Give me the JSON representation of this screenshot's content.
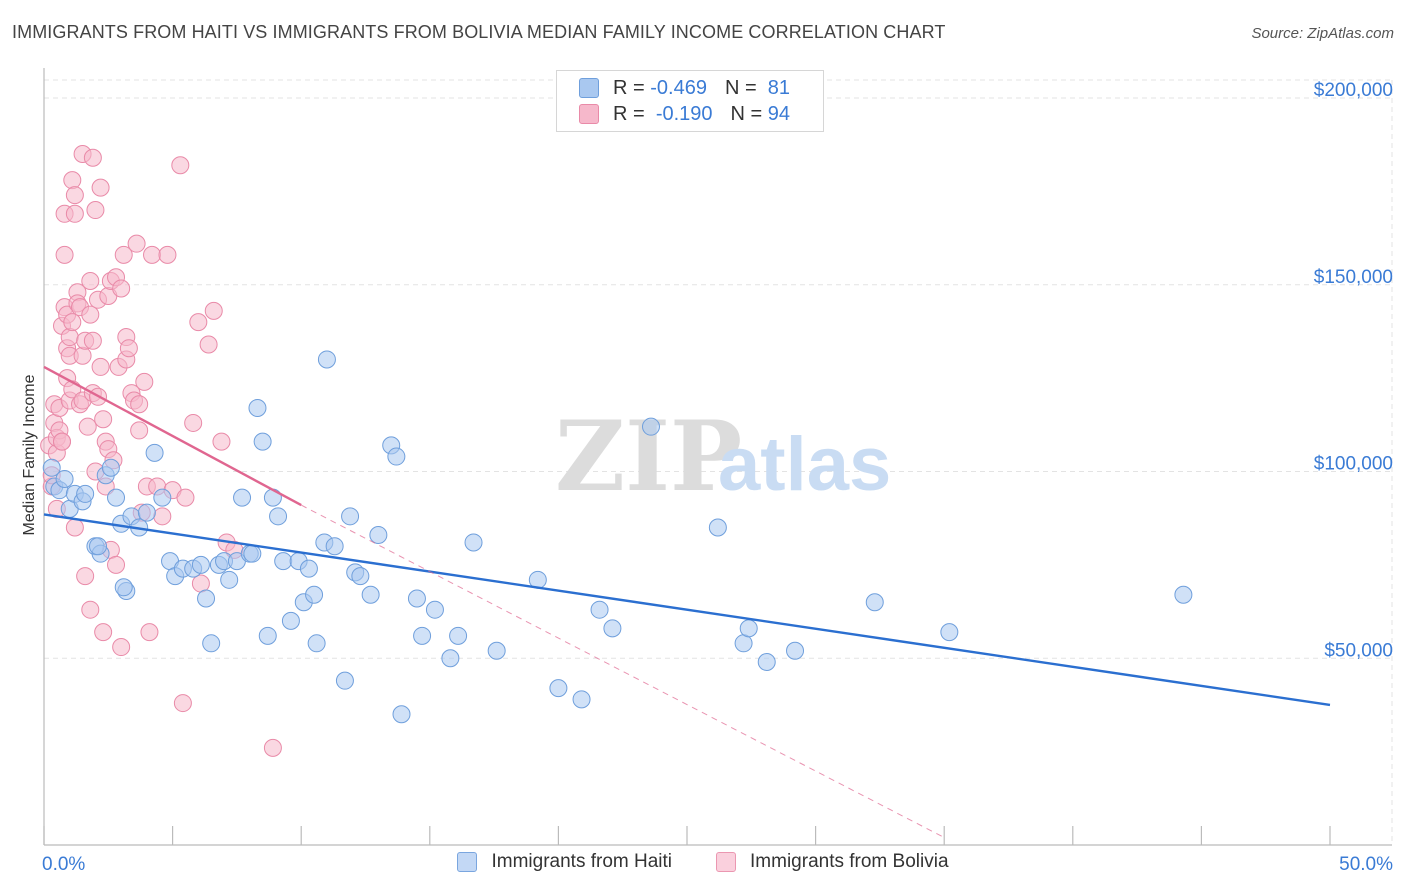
{
  "header": {
    "title": "IMMIGRANTS FROM HAITI VS IMMIGRANTS FROM BOLIVIA MEDIAN FAMILY INCOME CORRELATION CHART",
    "source": "Source: ZipAtlas.com"
  },
  "watermark": {
    "zip": "ZIP",
    "atlas": "atlas"
  },
  "legend": {
    "rows": [
      {
        "r_label": "R =",
        "r_value": "-0.469",
        "n_label": "N =",
        "n_value": "81"
      },
      {
        "r_label": "R =",
        "r_value": "-0.190",
        "n_label": "N =",
        "n_value": "94"
      }
    ]
  },
  "colors": {
    "haiti_fill": "#a9c8f0",
    "haiti_stroke": "#6f9fdc",
    "haiti_line": "#2b6fd0",
    "bolivia_fill": "#f6b8cb",
    "bolivia_stroke": "#e98aa8",
    "bolivia_line": "#e06690",
    "accent_text": "#3a7bd5",
    "grid": "#e3e3e3"
  },
  "chart_data": {
    "type": "scatter",
    "title": "IMMIGRANTS FROM HAITI VS IMMIGRANTS FROM BOLIVIA MEDIAN FAMILY INCOME CORRELATION CHART",
    "xlabel": "",
    "ylabel": "Median Family Income",
    "xlim": [
      0,
      50
    ],
    "ylim": [
      0,
      210000
    ],
    "x_tick_labels": [
      "0.0%",
      "50.0%"
    ],
    "y_ticks": [
      50000,
      100000,
      150000,
      200000
    ],
    "y_tick_labels": [
      "$50,000",
      "$100,000",
      "$150,000",
      "$200,000"
    ],
    "legend_position": "top-center",
    "series": [
      {
        "name": "Immigrants from Haiti",
        "r": -0.469,
        "n": 81,
        "trend": {
          "x": [
            0,
            50
          ],
          "y": [
            88500,
            37500
          ]
        },
        "points": [
          [
            0.3,
            101000
          ],
          [
            0.4,
            96000
          ],
          [
            0.6,
            95000
          ],
          [
            0.8,
            98000
          ],
          [
            1.0,
            90000
          ],
          [
            1.2,
            94000
          ],
          [
            1.5,
            92000
          ],
          [
            1.6,
            94000
          ],
          [
            2.0,
            80000
          ],
          [
            2.2,
            78000
          ],
          [
            2.4,
            99000
          ],
          [
            2.6,
            101000
          ],
          [
            2.8,
            93000
          ],
          [
            3.0,
            86000
          ],
          [
            3.2,
            68000
          ],
          [
            3.4,
            88000
          ],
          [
            3.7,
            85000
          ],
          [
            4.0,
            89000
          ],
          [
            4.3,
            105000
          ],
          [
            4.6,
            93000
          ],
          [
            4.9,
            76000
          ],
          [
            5.1,
            72000
          ],
          [
            5.4,
            74000
          ],
          [
            5.8,
            74000
          ],
          [
            6.1,
            75000
          ],
          [
            6.3,
            66000
          ],
          [
            6.5,
            54000
          ],
          [
            6.8,
            75000
          ],
          [
            7.0,
            76000
          ],
          [
            7.2,
            71000
          ],
          [
            7.5,
            76000
          ],
          [
            7.7,
            93000
          ],
          [
            8.0,
            78000
          ],
          [
            8.1,
            78000
          ],
          [
            8.3,
            117000
          ],
          [
            8.5,
            108000
          ],
          [
            8.7,
            56000
          ],
          [
            8.9,
            93000
          ],
          [
            9.1,
            88000
          ],
          [
            9.3,
            76000
          ],
          [
            9.6,
            60000
          ],
          [
            9.9,
            76000
          ],
          [
            10.1,
            65000
          ],
          [
            10.3,
            74000
          ],
          [
            10.5,
            67000
          ],
          [
            10.6,
            54000
          ],
          [
            10.9,
            81000
          ],
          [
            11.0,
            130000
          ],
          [
            11.3,
            80000
          ],
          [
            11.7,
            44000
          ],
          [
            11.9,
            88000
          ],
          [
            12.1,
            73000
          ],
          [
            12.3,
            72000
          ],
          [
            12.7,
            67000
          ],
          [
            13.0,
            83000
          ],
          [
            13.5,
            107000
          ],
          [
            13.7,
            104000
          ],
          [
            13.9,
            35000
          ],
          [
            14.5,
            66000
          ],
          [
            14.7,
            56000
          ],
          [
            15.2,
            63000
          ],
          [
            15.8,
            50000
          ],
          [
            16.1,
            56000
          ],
          [
            16.7,
            81000
          ],
          [
            17.6,
            52000
          ],
          [
            19.2,
            71000
          ],
          [
            20.0,
            42000
          ],
          [
            20.9,
            39000
          ],
          [
            21.6,
            63000
          ],
          [
            22.1,
            58000
          ],
          [
            23.6,
            112000
          ],
          [
            26.2,
            85000
          ],
          [
            27.2,
            54000
          ],
          [
            27.4,
            58000
          ],
          [
            28.1,
            49000
          ],
          [
            29.2,
            52000
          ],
          [
            32.3,
            65000
          ],
          [
            35.2,
            57000
          ],
          [
            44.3,
            67000
          ],
          [
            3.1,
            69000
          ],
          [
            2.1,
            80000
          ]
        ]
      },
      {
        "name": "Immigrants from Bolivia",
        "r": -0.19,
        "n": 94,
        "trend": {
          "x": [
            0,
            10
          ],
          "y": [
            128000,
            91000
          ]
        },
        "trend_dashed": {
          "x": [
            10,
            35
          ],
          "y": [
            91000,
            2000
          ]
        },
        "points": [
          [
            0.2,
            107000
          ],
          [
            0.3,
            96000
          ],
          [
            0.3,
            99000
          ],
          [
            0.4,
            113000
          ],
          [
            0.4,
            118000
          ],
          [
            0.5,
            105000
          ],
          [
            0.5,
            109000
          ],
          [
            0.5,
            90000
          ],
          [
            0.6,
            111000
          ],
          [
            0.6,
            117000
          ],
          [
            0.7,
            108000
          ],
          [
            0.7,
            108000
          ],
          [
            0.7,
            139000
          ],
          [
            0.8,
            169000
          ],
          [
            0.8,
            158000
          ],
          [
            0.8,
            144000
          ],
          [
            0.9,
            142000
          ],
          [
            0.9,
            133000
          ],
          [
            0.9,
            125000
          ],
          [
            1.0,
            136000
          ],
          [
            1.0,
            131000
          ],
          [
            1.0,
            119000
          ],
          [
            1.1,
            140000
          ],
          [
            1.1,
            122000
          ],
          [
            1.1,
            178000
          ],
          [
            1.2,
            174000
          ],
          [
            1.2,
            169000
          ],
          [
            1.2,
            85000
          ],
          [
            1.3,
            148000
          ],
          [
            1.3,
            145000
          ],
          [
            1.4,
            144000
          ],
          [
            1.4,
            118000
          ],
          [
            1.5,
            185000
          ],
          [
            1.5,
            131000
          ],
          [
            1.5,
            119000
          ],
          [
            1.6,
            135000
          ],
          [
            1.6,
            72000
          ],
          [
            1.7,
            112000
          ],
          [
            1.8,
            151000
          ],
          [
            1.8,
            142000
          ],
          [
            1.8,
            63000
          ],
          [
            1.9,
            184000
          ],
          [
            1.9,
            135000
          ],
          [
            1.9,
            121000
          ],
          [
            2.0,
            170000
          ],
          [
            2.0,
            100000
          ],
          [
            2.1,
            146000
          ],
          [
            2.1,
            120000
          ],
          [
            2.2,
            176000
          ],
          [
            2.2,
            128000
          ],
          [
            2.3,
            57000
          ],
          [
            2.3,
            114000
          ],
          [
            2.4,
            96000
          ],
          [
            2.4,
            108000
          ],
          [
            2.5,
            147000
          ],
          [
            2.5,
            106000
          ],
          [
            2.6,
            151000
          ],
          [
            2.6,
            79000
          ],
          [
            2.7,
            103000
          ],
          [
            2.8,
            152000
          ],
          [
            2.8,
            75000
          ],
          [
            2.9,
            128000
          ],
          [
            3.0,
            149000
          ],
          [
            3.0,
            53000
          ],
          [
            3.1,
            158000
          ],
          [
            3.2,
            136000
          ],
          [
            3.2,
            130000
          ],
          [
            3.3,
            133000
          ],
          [
            3.4,
            121000
          ],
          [
            3.5,
            119000
          ],
          [
            3.6,
            161000
          ],
          [
            3.7,
            118000
          ],
          [
            3.7,
            111000
          ],
          [
            3.8,
            89000
          ],
          [
            3.9,
            124000
          ],
          [
            4.0,
            96000
          ],
          [
            4.1,
            57000
          ],
          [
            4.2,
            158000
          ],
          [
            4.4,
            96000
          ],
          [
            4.6,
            88000
          ],
          [
            4.8,
            158000
          ],
          [
            5.0,
            95000
          ],
          [
            5.3,
            182000
          ],
          [
            5.4,
            38000
          ],
          [
            5.5,
            93000
          ],
          [
            5.8,
            113000
          ],
          [
            6.0,
            140000
          ],
          [
            6.1,
            70000
          ],
          [
            6.4,
            134000
          ],
          [
            6.6,
            143000
          ],
          [
            6.9,
            108000
          ],
          [
            7.1,
            81000
          ],
          [
            7.4,
            79000
          ],
          [
            8.9,
            26000
          ]
        ]
      }
    ]
  },
  "bottom_legend": {
    "items": [
      {
        "label": "Immigrants from Haiti"
      },
      {
        "label": "Immigrants from Bolivia"
      }
    ]
  }
}
